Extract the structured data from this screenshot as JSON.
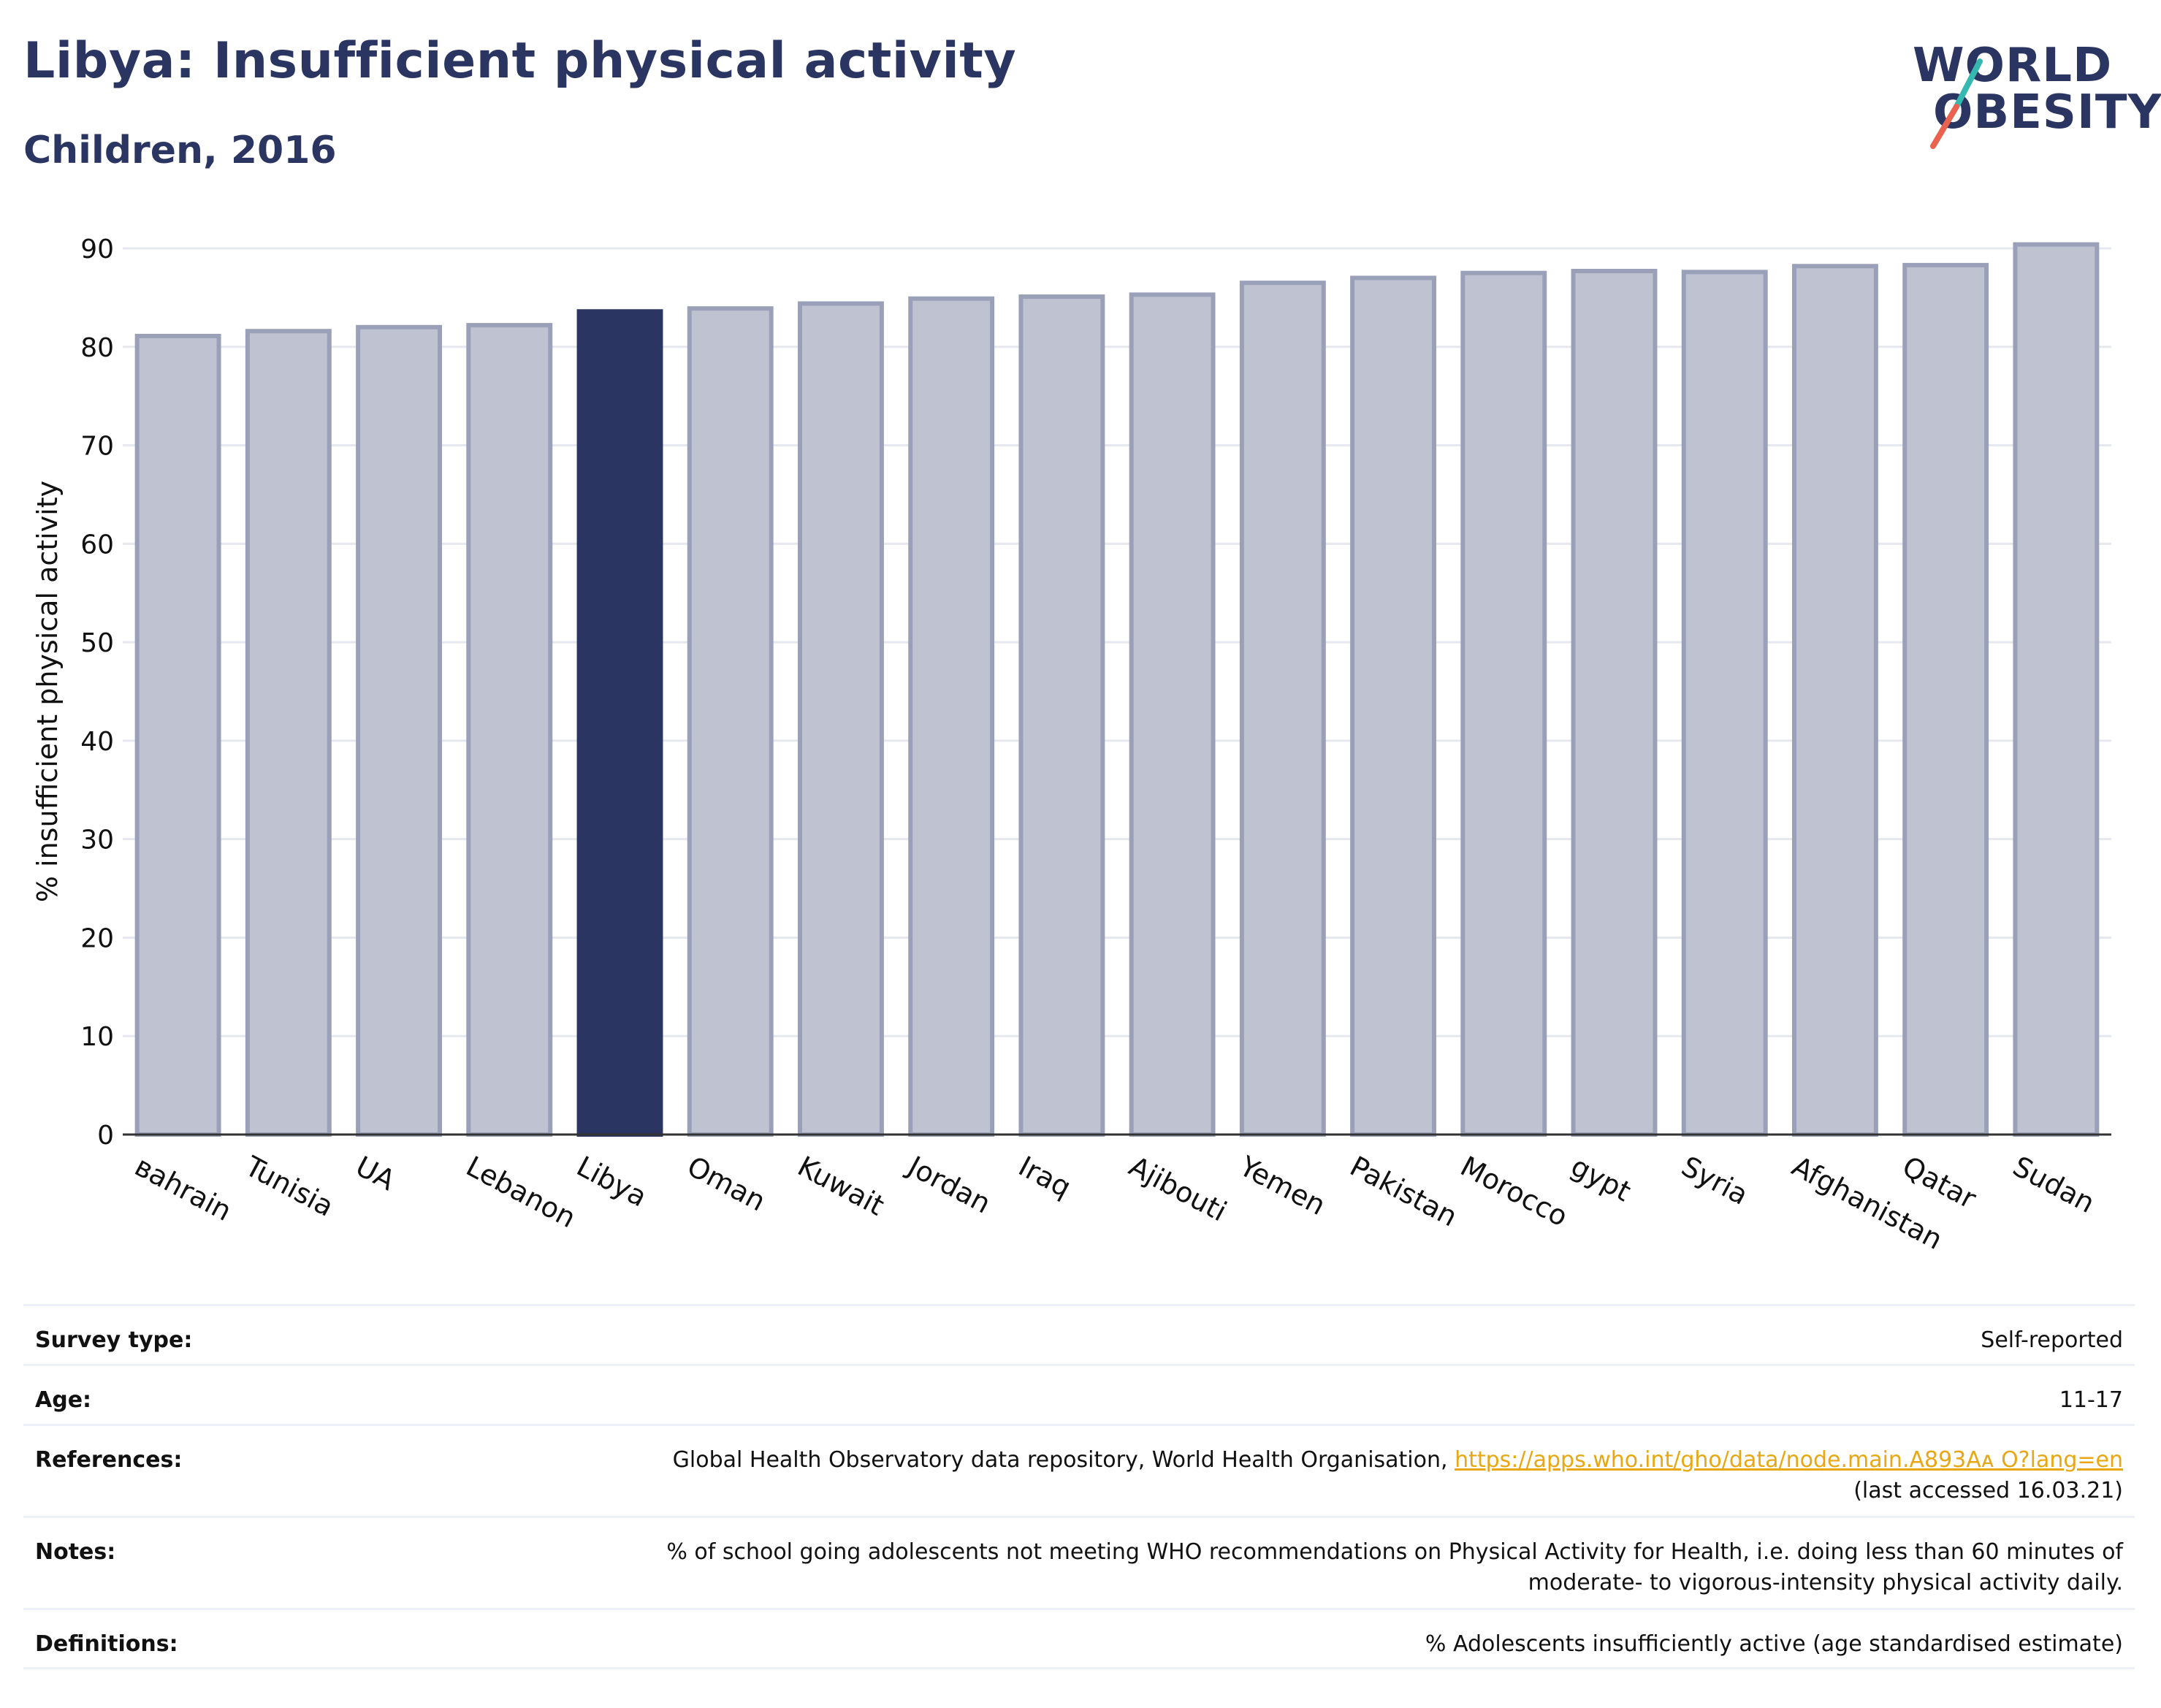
{
  "header": {
    "title": "Libya: Insufficient physical activity",
    "subtitle": "Children, 2016"
  },
  "logo": {
    "line1": "WORLD",
    "line2": "OBESITY",
    "accent_teal": "#35b8b0",
    "accent_red": "#e8624f"
  },
  "colors": {
    "highlight": "#2b3561",
    "bar": "#bfc2d0",
    "bar_border": "#9aa0b8"
  },
  "chart_data": {
    "type": "bar",
    "ylabel": "% insufficient physical activity",
    "xlabel": "",
    "ylim": [
      0,
      90
    ],
    "yticks": [
      0,
      10,
      20,
      30,
      40,
      50,
      60,
      70,
      80,
      90
    ],
    "grid": true,
    "highlight": "Libya",
    "categories": [
      "ʙahrain",
      "Tunisia",
      "UA",
      "Lebanon",
      "Libya",
      "Oman",
      "Kuwait",
      "Jordan",
      "Iraq",
      "Ajibouti",
      "Yemen",
      "Pakistan",
      "Morocco",
      "gypt",
      "Syria",
      "Afghanistan",
      "Qatar",
      "Sudan"
    ],
    "values": [
      81.1,
      81.6,
      82.0,
      82.2,
      83.6,
      83.9,
      84.4,
      84.9,
      85.1,
      85.3,
      86.5,
      87.0,
      87.5,
      87.7,
      87.6,
      88.2,
      88.3,
      90.4
    ]
  },
  "info": {
    "survey_type_label": "Survey type:",
    "survey_type_value": "Self-reported",
    "age_label": "Age:",
    "age_value": "11-17",
    "references_label": "References:",
    "references_text": "Global Health Observatory data repository, World Health Organisation, ",
    "references_link": "https://apps.who.int/gho/data/node.main.A893Aᴀ O?lang=en",
    "references_accessed": "(last accessed 16.03.21)",
    "notes_label": "Notes:",
    "notes_line1": "% of school going adolescents not meeting WHO recommendations on Physical Activity for Health, i.e. doing less than 60 minutes of",
    "notes_line2": "moderate- to vigorous-intensity physical activity daily.",
    "definitions_label": "Definitions:",
    "definitions_value": "% Adolescents insufficiently active (age standardised estimate)"
  }
}
